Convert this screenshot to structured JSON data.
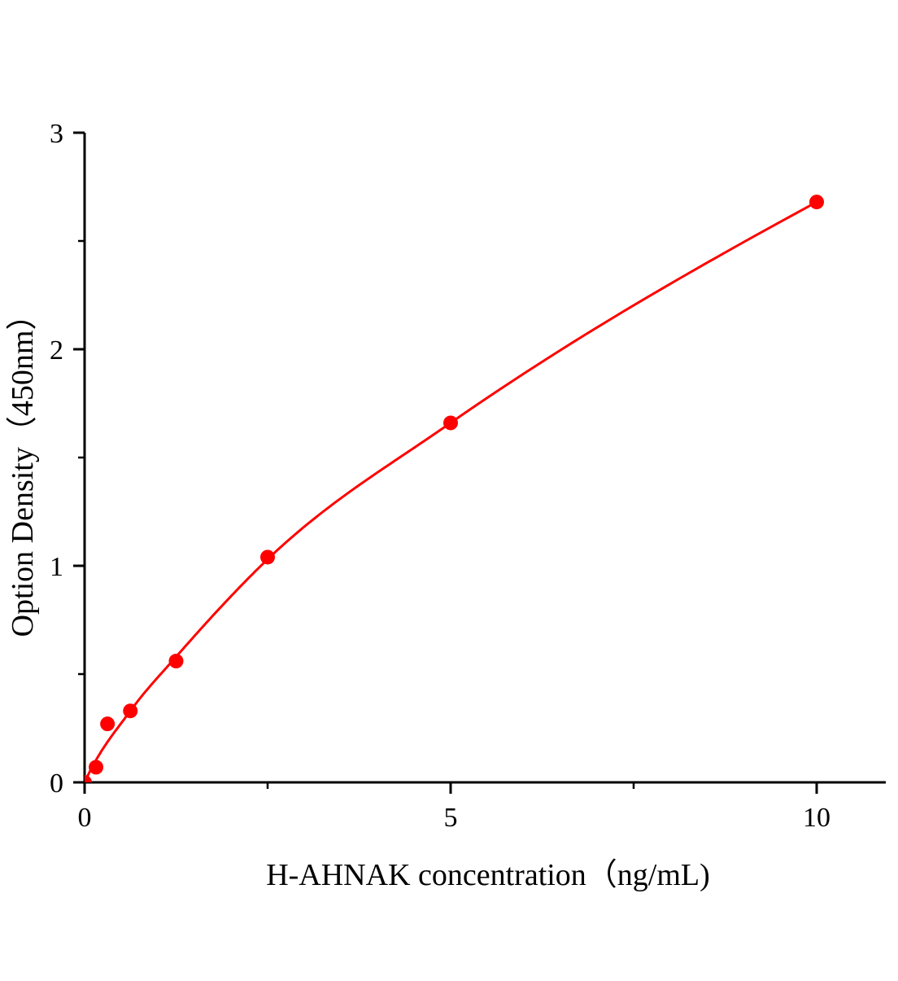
{
  "chart_data": {
    "type": "scatter",
    "title": "",
    "xlabel": "H-AHNAK concentration（ng/mL)",
    "ylabel": "Option Density（450nm）",
    "xlim": [
      0,
      11
    ],
    "ylim": [
      0,
      3
    ],
    "xticks": [
      0,
      5,
      10
    ],
    "xtick_labels": [
      "0",
      "5",
      "10"
    ],
    "x_minor_ticks": [
      2.5,
      7.5
    ],
    "yticks": [
      0,
      1,
      2,
      3
    ],
    "ytick_labels": [
      "0",
      "1",
      "2",
      "3"
    ],
    "y_minor_ticks": [
      0.5,
      1.5,
      2.5
    ],
    "grid": false,
    "series": [
      {
        "x": [
          0,
          0.156,
          0.3125,
          0.625,
          1.25,
          2.5,
          5,
          10
        ],
        "y": [
          0.0,
          0.07,
          0.27,
          0.33,
          0.56,
          1.04,
          1.66,
          2.68
        ],
        "color": "#ff0000",
        "fit_curve": true
      }
    ]
  }
}
